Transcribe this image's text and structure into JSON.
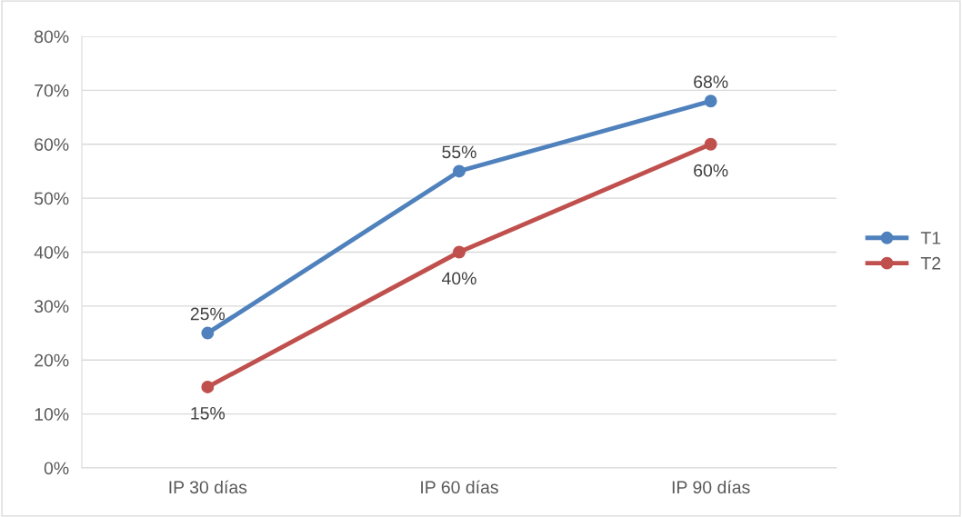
{
  "chart_data": {
    "type": "line",
    "categories": [
      "IP 30 días",
      "IP 60 días",
      "IP 90 días"
    ],
    "series": [
      {
        "name": "T1",
        "color": "#4f81bd",
        "values": [
          25,
          55,
          68
        ],
        "value_labels": [
          "25%",
          "55%",
          "68%"
        ]
      },
      {
        "name": "T2",
        "color": "#c0504d",
        "values": [
          15,
          40,
          60
        ],
        "value_labels": [
          "15%",
          "40%",
          "60%"
        ]
      }
    ],
    "ylim": [
      0,
      80
    ],
    "yticks": [
      {
        "value": 0,
        "label": "0%"
      },
      {
        "value": 10,
        "label": "10%"
      },
      {
        "value": 20,
        "label": "20%"
      },
      {
        "value": 30,
        "label": "30%"
      },
      {
        "value": 40,
        "label": "40%"
      },
      {
        "value": 50,
        "label": "50%"
      },
      {
        "value": 60,
        "label": "60%"
      },
      {
        "value": 70,
        "label": "70%"
      },
      {
        "value": 80,
        "label": "80%"
      }
    ],
    "grid": "y",
    "legend": "right",
    "marker": "circle",
    "line_style": "solid"
  }
}
